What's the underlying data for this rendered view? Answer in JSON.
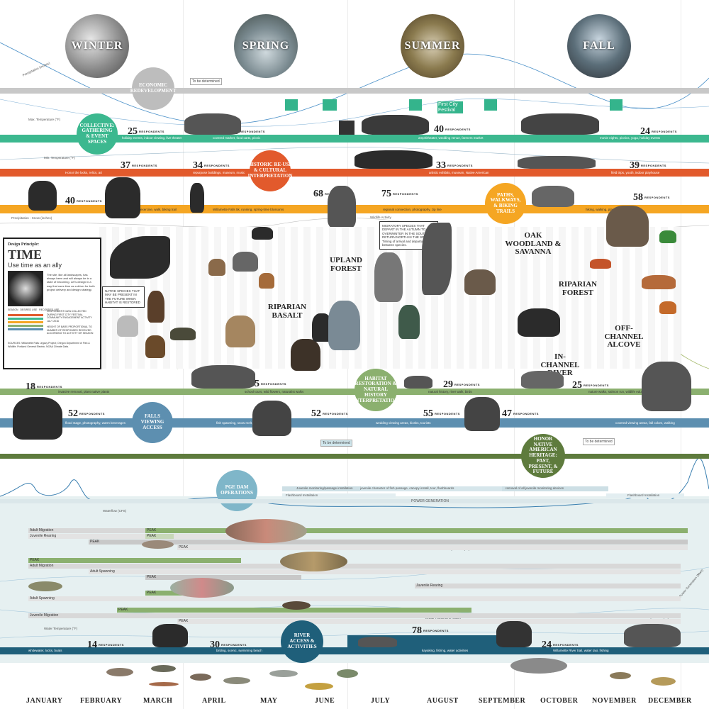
{
  "seasons": [
    "WINTER",
    "SPRING",
    "SUMMER",
    "FALL"
  ],
  "months": [
    "JANUARY",
    "FEBRUARY",
    "MARCH",
    "APRIL",
    "MAY",
    "JUNE",
    "JULY",
    "AUGUST",
    "SEPTEMBER",
    "OCTOBER",
    "NOVEMBER",
    "DECEMBER"
  ],
  "to_be_determined": "To be determined",
  "economic_redevelopment": "ECONOMIC REDEVELOPMENT",
  "collective": {
    "badge": "COLLECTIVE: GATHERING & EVENT SPACES",
    "counts": [
      "25",
      "24",
      "40",
      "24"
    ],
    "captions": [
      "holiday events, indoor viewing, live theater",
      "covered market, food carts, picnic",
      "amphitheater, wedding venue, farmers market",
      "movie nights, picnics, yoga, holiday events"
    ],
    "festival": "First City Festival"
  },
  "historic": {
    "badge": "HISTORIC RE-USE & CULTURAL INTERPRETATION",
    "counts": [
      "37",
      "34",
      "33",
      "39"
    ],
    "captions": [
      "Honor the locks, relics, art",
      "repurpose buildings, museum, music",
      "artistic exhibits, museum, Native American",
      "field trips, youth, indoor playhouse"
    ]
  },
  "paths": {
    "badge": "PATHS, WALKWAYS, & BIKING TRAILS",
    "counts": [
      "40",
      "68",
      "75",
      "58"
    ],
    "captions": [
      "exercise, walk, biking trail",
      "Willamette Falls 5k, running, spring-time blossoms",
      "regional connection, photography, zip line",
      "hiking, walking, playground"
    ]
  },
  "climate_labels": [
    "Max. Temperature (°F)",
    "Avg. Temperature (°F)",
    "Min. Temperature (°F)",
    "Precipitation - Snow (inches)",
    "Precipitation (inches)",
    "Wildlife Activity"
  ],
  "design": {
    "header": "Design Principle:",
    "title": "TIME",
    "subtitle": "Use time as an ally",
    "body": "The site, like all landscapes, has always been and will always be in a state of becoming. Let's design in a way that uses time as a driver for both project delivery and design strategy.",
    "legend_heads": [
      "SEASON",
      "DESIRED USE",
      "RECORDED USE"
    ],
    "notes": [
      "RESPONDENT DATA COLLECTED DURING FIRST CITY FESTIVAL COMMUNITY ENGAGEMENT ACTIVITY JULY 2016",
      "HEIGHT OF BARS PROPORTIONAL TO NUMBER OF RESPONSES RECEIVED ACCORDING TO ACTIVITY OR SEASON"
    ],
    "source": "SOURCES: Willamette Falls Legacy Project; Oregon Department of Fish & Wildlife; Portland General Electric; NOAA Climate Data."
  },
  "native_species": "NATIVE SPECIES THAT MAY BE PRESENT IN THE FUTURE WHEN HABITAT IS RESTORED",
  "migratory": "MIGRATORY SPECIES THAT DEPART IN THE AUTUMN TO OVERWINTER IN THE SOUTH AND RETURN NORTH IN THE SPRING. Timing of arrival and departure varies between species.",
  "habitats": [
    "UPLAND FOREST",
    "RIPARIAN BASALT",
    "OAK WOODLAND & SAVANNA",
    "RIPARIAN FOREST",
    "OFF-CHANNEL ALCOVE",
    "IN-CHANNEL RIVER"
  ],
  "habitat_badge": "HABITAT RESTORATION & NATURAL HISTORY INTERPRETATION",
  "habitat_row": {
    "counts": [
      "18",
      "35",
      "29",
      "25"
    ],
    "captions": [
      "invasive removal, plant native plants",
      "school tours, wild flowers, naturalist walks",
      "natural history, river walk, birds",
      "nature walks, salmon run, wildlife education"
    ]
  },
  "falls": {
    "badge": "FALLS VIEWING ACCESS",
    "counts": [
      "52",
      "52",
      "55",
      "47"
    ],
    "captions": [
      "flood stage, photography, warm beverages",
      "fish spawning, snow melt, low flowers",
      "wedding viewing areas, kiosks, tourists",
      "covered viewing areas, fall colors, walking"
    ]
  },
  "native": {
    "badge": "HONOR NATIVE AMERICAN HERITAGE: PAST, PRESENT, & FUTURE"
  },
  "pge": {
    "badge": "PGE DAM OPERATIONS",
    "bars": [
      "Juvenile monitoring/passage installation",
      "juvenile character of fish passage, canopy install, tour, flashboards",
      "removal of all juvenile monitoring devices",
      "Flashboard Installation",
      "Flashboard Installation"
    ],
    "power": "POWER GENERATION",
    "waterflow": "Waterflow (CFS)",
    "water_temp": "Water Temperature (°F)",
    "power_gen": "Power Generation (Mwh)"
  },
  "fish": {
    "peak": "PEAK",
    "labels": [
      "Adult Migration",
      "Juvenile Rearing",
      "Juvenile Migration",
      "Adult Migration",
      "Adult Spawning",
      "Juvenile Rearing",
      "Adult Spawning",
      "Juvenile Rearing",
      "Adult Migration",
      "Juvenile Migration",
      "Adult Migration",
      "Adult Spawning",
      "Juvenile Rearing"
    ]
  },
  "river": {
    "badge": "RIVER ACCESS & ACTIVITIES",
    "counts": [
      "14",
      "30",
      "78",
      "24"
    ],
    "captions": [
      "whitewater, locks, boats",
      "birding, scenic, swimming beach",
      "kayaking, fishing, water activities",
      "Willamette River trail, water taxi, fishing"
    ]
  },
  "respondents": "RESPONDENTS",
  "colors": {
    "collective": "#3cb88f",
    "historic": "#e25a2c",
    "paths": "#f5a623",
    "habitat": "#8bb06f",
    "falls": "#5d8fb0",
    "native": "#5e7b3d",
    "pge": "#7fb6c9",
    "river": "#1f5f7a",
    "grey": "#c8c8c8"
  }
}
